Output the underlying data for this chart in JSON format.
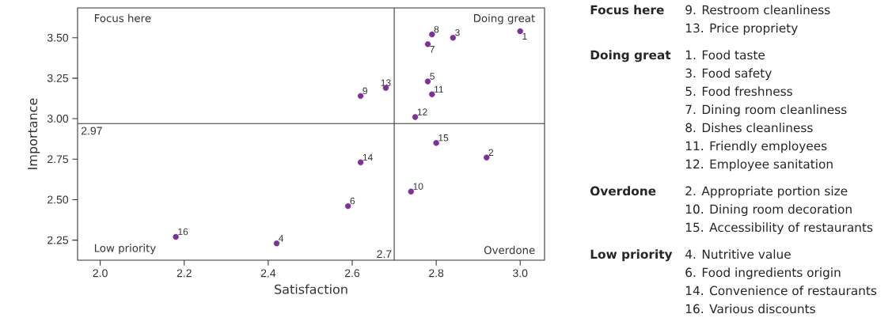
{
  "chart_data": {
    "type": "scatter",
    "xlabel": "Satisfaction",
    "ylabel": "Importance",
    "xlim": [
      1.946,
      3.058
    ],
    "ylim": [
      2.126,
      3.684
    ],
    "xticks": [
      {
        "value": 2.0,
        "label": "2.0"
      },
      2.2,
      2.4,
      2.6,
      2.8,
      {
        "value": 3.0,
        "label": "3.0"
      }
    ],
    "yticks": [
      {
        "value": 2.25,
        "label": "2.25"
      },
      {
        "value": 2.5,
        "label": "2.50"
      },
      2.75,
      {
        "value": 3.0,
        "label": "3.00"
      },
      3.25,
      {
        "value": 3.5,
        "label": "3.50"
      }
    ],
    "grid": false,
    "marker": "circle",
    "series": [
      {
        "color": "#7b3294",
        "x": [
          3.0,
          2.92,
          2.84,
          2.42,
          2.78,
          2.59,
          2.78,
          2.79,
          2.62,
          2.74,
          2.79,
          2.75,
          2.68,
          2.62,
          2.8,
          2.18
        ],
        "values": [
          3.54,
          2.76,
          3.5,
          2.23,
          3.23,
          2.46,
          3.46,
          3.52,
          3.14,
          2.55,
          3.15,
          3.01,
          3.19,
          2.73,
          2.85,
          2.27
        ]
      }
    ],
    "ref_lines": [
      {
        "axis": "x",
        "value": 2.7,
        "label": "2.7",
        "color": "#333333"
      },
      {
        "axis": "y",
        "value": 2.97,
        "label": "2.97",
        "color": "#333333"
      }
    ],
    "annotations": [
      {
        "text": "1",
        "x": 3.0,
        "y": 3.54
      },
      {
        "text": "2",
        "x": 2.92,
        "y": 2.76
      },
      {
        "text": "3",
        "x": 2.84,
        "y": 3.5
      },
      {
        "text": "4",
        "x": 2.42,
        "y": 2.23
      },
      {
        "text": "5",
        "x": 2.78,
        "y": 3.23
      },
      {
        "text": "6",
        "x": 2.59,
        "y": 2.46
      },
      {
        "text": "7",
        "x": 2.78,
        "y": 3.46
      },
      {
        "text": "8",
        "x": 2.79,
        "y": 3.52
      },
      {
        "text": "9",
        "x": 2.62,
        "y": 3.14
      },
      {
        "text": "10",
        "x": 2.74,
        "y": 2.55
      },
      {
        "text": "11",
        "x": 2.79,
        "y": 3.15
      },
      {
        "text": "12",
        "x": 2.75,
        "y": 3.01
      },
      {
        "text": "13",
        "x": 2.68,
        "y": 3.19
      },
      {
        "text": "14",
        "x": 2.62,
        "y": 2.73
      },
      {
        "text": "15",
        "x": 2.8,
        "y": 2.85
      },
      {
        "text": "16",
        "x": 2.18,
        "y": 2.27
      },
      "Focus here",
      "Doing great",
      "Low priority",
      "Overdone",
      "Focus here",
      "9. Restroom cleanliness",
      "13. Price propriety",
      "Doing great",
      "1. Food taste",
      "3. Food safety",
      "5. Food freshness",
      "7. Dining room cleanliness",
      "8. Dishes cleanliness",
      "11. Friendly employees",
      "12. Employee sanitation",
      "Overdone",
      "2. Appropriate portion size",
      "10. Dining room decoration",
      "15. Accessibility of restaurants",
      "Low priority",
      "4. Nutritive value",
      "6. Food ingredients origin",
      "14. Convenience of restaurants",
      "16. Various discounts"
    ]
  }
}
